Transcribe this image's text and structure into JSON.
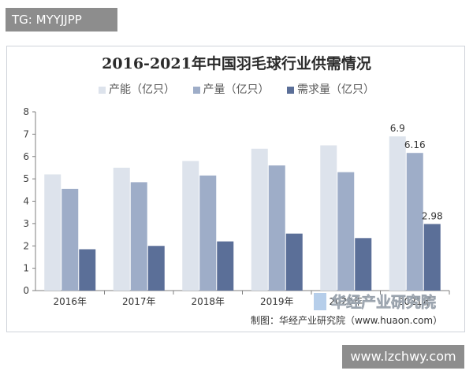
{
  "watermark_tag": "TG: MYYJJPP",
  "website": "www.lzchwy.com",
  "source": "制图：华经产业研究院（www.huaon.com）",
  "logo_text": "华经产业研究院",
  "colors": {
    "capacity": "#dde3ec",
    "output": "#9eadc8",
    "demand": "#5b6f98",
    "axis": "#7f7f7f",
    "text": "#404040"
  },
  "chart_data": {
    "type": "bar",
    "title": "2016-2021年中国羽毛球行业供需情况",
    "categories": [
      "2016年",
      "2017年",
      "2018年",
      "2019年",
      "2020年",
      "2021年"
    ],
    "series": [
      {
        "name": "产能（亿只）",
        "values": [
          5.2,
          5.5,
          5.8,
          6.35,
          6.5,
          6.9
        ]
      },
      {
        "name": "产量（亿只）",
        "values": [
          4.55,
          4.85,
          5.15,
          5.6,
          5.3,
          6.16
        ]
      },
      {
        "name": "需求量（亿只）",
        "values": [
          1.85,
          2.0,
          2.2,
          2.55,
          2.35,
          2.98
        ]
      }
    ],
    "data_labels": [
      {
        "series": 0,
        "index": 5,
        "text": "6.9"
      },
      {
        "series": 1,
        "index": 5,
        "text": "6.16"
      },
      {
        "series": 2,
        "index": 5,
        "text": "2.98"
      }
    ],
    "ylim": [
      0,
      8
    ],
    "yticks": [
      "0",
      "1",
      "2",
      "3",
      "4",
      "5",
      "6",
      "7",
      "8"
    ],
    "grid": false,
    "legend": "top"
  }
}
